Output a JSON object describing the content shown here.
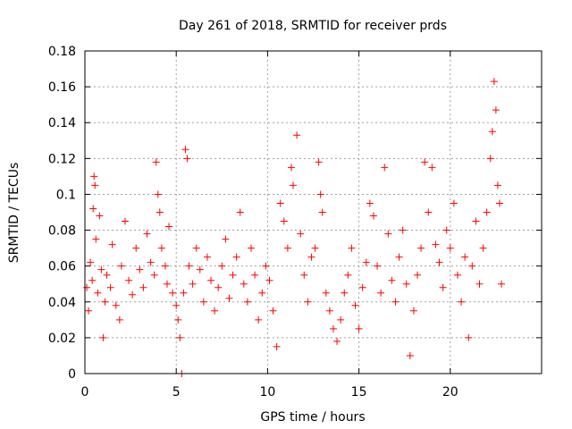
{
  "chart_data": {
    "type": "scatter",
    "title": "Day 261 of 2018, SRMTID for receiver prds",
    "xlabel": "GPS time / hours",
    "ylabel": "SRMTID / TECUs",
    "xlim": [
      0,
      25
    ],
    "ylim": [
      0,
      0.18
    ],
    "xticks": [
      0,
      5,
      10,
      15,
      20
    ],
    "xtick_labels": [
      "0",
      "5",
      "10",
      "15",
      "20"
    ],
    "yticks": [
      0,
      0.02,
      0.04,
      0.06,
      0.08,
      0.1,
      0.12,
      0.14,
      0.16,
      0.18
    ],
    "ytick_labels": [
      "0",
      "0.02",
      "0.04",
      "0.06",
      "0.08",
      "0.1",
      "0.12",
      "0.14",
      "0.16",
      "0.18"
    ],
    "grid": true,
    "marker": "+",
    "color": "#ff0000",
    "series": [
      {
        "name": "SRMTID",
        "points": [
          [
            0.1,
            0.048
          ],
          [
            0.2,
            0.035
          ],
          [
            0.3,
            0.062
          ],
          [
            0.4,
            0.052
          ],
          [
            0.45,
            0.092
          ],
          [
            0.5,
            0.11
          ],
          [
            0.55,
            0.105
          ],
          [
            0.6,
            0.075
          ],
          [
            0.7,
            0.045
          ],
          [
            0.8,
            0.088
          ],
          [
            0.9,
            0.058
          ],
          [
            1.0,
            0.02
          ],
          [
            1.1,
            0.04
          ],
          [
            1.2,
            0.055
          ],
          [
            1.4,
            0.048
          ],
          [
            1.5,
            0.072
          ],
          [
            1.7,
            0.038
          ],
          [
            1.9,
            0.03
          ],
          [
            2.0,
            0.06
          ],
          [
            2.2,
            0.085
          ],
          [
            2.4,
            0.052
          ],
          [
            2.6,
            0.044
          ],
          [
            2.8,
            0.07
          ],
          [
            3.0,
            0.058
          ],
          [
            3.2,
            0.048
          ],
          [
            3.4,
            0.078
          ],
          [
            3.6,
            0.062
          ],
          [
            3.8,
            0.055
          ],
          [
            3.9,
            0.118
          ],
          [
            4.0,
            0.1
          ],
          [
            4.1,
            0.09
          ],
          [
            4.2,
            0.07
          ],
          [
            4.4,
            0.06
          ],
          [
            4.5,
            0.05
          ],
          [
            4.6,
            0.082
          ],
          [
            4.8,
            0.045
          ],
          [
            5.0,
            0.038
          ],
          [
            5.1,
            0.03
          ],
          [
            5.2,
            0.02
          ],
          [
            5.3,
            0.0
          ],
          [
            5.4,
            0.045
          ],
          [
            5.5,
            0.125
          ],
          [
            5.6,
            0.12
          ],
          [
            5.7,
            0.06
          ],
          [
            5.9,
            0.05
          ],
          [
            6.1,
            0.07
          ],
          [
            6.3,
            0.058
          ],
          [
            6.5,
            0.04
          ],
          [
            6.7,
            0.065
          ],
          [
            6.9,
            0.052
          ],
          [
            7.1,
            0.035
          ],
          [
            7.3,
            0.048
          ],
          [
            7.5,
            0.06
          ],
          [
            7.7,
            0.075
          ],
          [
            7.9,
            0.042
          ],
          [
            8.1,
            0.055
          ],
          [
            8.3,
            0.065
          ],
          [
            8.5,
            0.09
          ],
          [
            8.7,
            0.05
          ],
          [
            8.9,
            0.04
          ],
          [
            9.1,
            0.07
          ],
          [
            9.3,
            0.055
          ],
          [
            9.5,
            0.03
          ],
          [
            9.7,
            0.045
          ],
          [
            9.9,
            0.06
          ],
          [
            10.1,
            0.052
          ],
          [
            10.3,
            0.035
          ],
          [
            10.5,
            0.015
          ],
          [
            10.7,
            0.095
          ],
          [
            10.9,
            0.085
          ],
          [
            11.1,
            0.07
          ],
          [
            11.3,
            0.115
          ],
          [
            11.4,
            0.105
          ],
          [
            11.6,
            0.133
          ],
          [
            11.8,
            0.078
          ],
          [
            12.0,
            0.055
          ],
          [
            12.2,
            0.04
          ],
          [
            12.4,
            0.065
          ],
          [
            12.6,
            0.07
          ],
          [
            12.8,
            0.118
          ],
          [
            12.9,
            0.1
          ],
          [
            13.0,
            0.09
          ],
          [
            13.2,
            0.045
          ],
          [
            13.4,
            0.035
          ],
          [
            13.6,
            0.025
          ],
          [
            13.8,
            0.018
          ],
          [
            14.0,
            0.03
          ],
          [
            14.2,
            0.045
          ],
          [
            14.4,
            0.055
          ],
          [
            14.6,
            0.07
          ],
          [
            14.8,
            0.038
          ],
          [
            15.0,
            0.025
          ],
          [
            15.2,
            0.048
          ],
          [
            15.4,
            0.062
          ],
          [
            15.6,
            0.095
          ],
          [
            15.8,
            0.088
          ],
          [
            16.0,
            0.06
          ],
          [
            16.2,
            0.045
          ],
          [
            16.4,
            0.115
          ],
          [
            16.6,
            0.078
          ],
          [
            16.8,
            0.052
          ],
          [
            17.0,
            0.04
          ],
          [
            17.2,
            0.065
          ],
          [
            17.4,
            0.08
          ],
          [
            17.6,
            0.05
          ],
          [
            17.8,
            0.01
          ],
          [
            18.0,
            0.035
          ],
          [
            18.2,
            0.055
          ],
          [
            18.4,
            0.07
          ],
          [
            18.6,
            0.118
          ],
          [
            18.8,
            0.09
          ],
          [
            19.0,
            0.115
          ],
          [
            19.2,
            0.072
          ],
          [
            19.4,
            0.062
          ],
          [
            19.6,
            0.048
          ],
          [
            19.8,
            0.08
          ],
          [
            20.0,
            0.07
          ],
          [
            20.2,
            0.095
          ],
          [
            20.4,
            0.055
          ],
          [
            20.6,
            0.04
          ],
          [
            20.8,
            0.065
          ],
          [
            21.0,
            0.02
          ],
          [
            21.2,
            0.06
          ],
          [
            21.4,
            0.085
          ],
          [
            21.6,
            0.05
          ],
          [
            21.8,
            0.07
          ],
          [
            22.0,
            0.09
          ],
          [
            22.2,
            0.12
          ],
          [
            22.3,
            0.135
          ],
          [
            22.4,
            0.163
          ],
          [
            22.5,
            0.147
          ],
          [
            22.6,
            0.105
          ],
          [
            22.7,
            0.095
          ],
          [
            22.8,
            0.05
          ]
        ]
      }
    ]
  }
}
